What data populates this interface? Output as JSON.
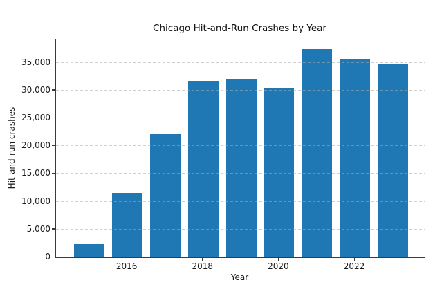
{
  "chart_data": {
    "type": "bar",
    "title": "Chicago Hit-and-Run Crashes by Year",
    "xlabel": "Year",
    "ylabel": "Hit-and-run crashes",
    "categories": [
      "2015",
      "2016",
      "2017",
      "2018",
      "2019",
      "2020",
      "2021",
      "2022",
      "2023"
    ],
    "values": [
      2330,
      11550,
      22200,
      31700,
      32100,
      30550,
      37450,
      35700,
      34850
    ],
    "ylim": [
      0,
      39200
    ],
    "ytick_values": [
      0,
      5000,
      10000,
      15000,
      20000,
      25000,
      30000,
      35000
    ],
    "ytick_labels": [
      "0",
      "5,000",
      "10,000",
      "15,000",
      "20,000",
      "25,000",
      "30,000",
      "35,000"
    ],
    "xtick_years": [
      2016,
      2018,
      2020,
      2022
    ],
    "xtick_labels": [
      "2016",
      "2018",
      "2020",
      "2022"
    ],
    "grid": "horizontal-dashed-above-bars",
    "legend": "none",
    "bar_color": "#1f77b4"
  },
  "colors": {
    "bar": "#1f77b4",
    "background": "#ffffff",
    "spine": "#3a3a3a",
    "grid": "#cccccc",
    "text": "#1a1a1a"
  }
}
